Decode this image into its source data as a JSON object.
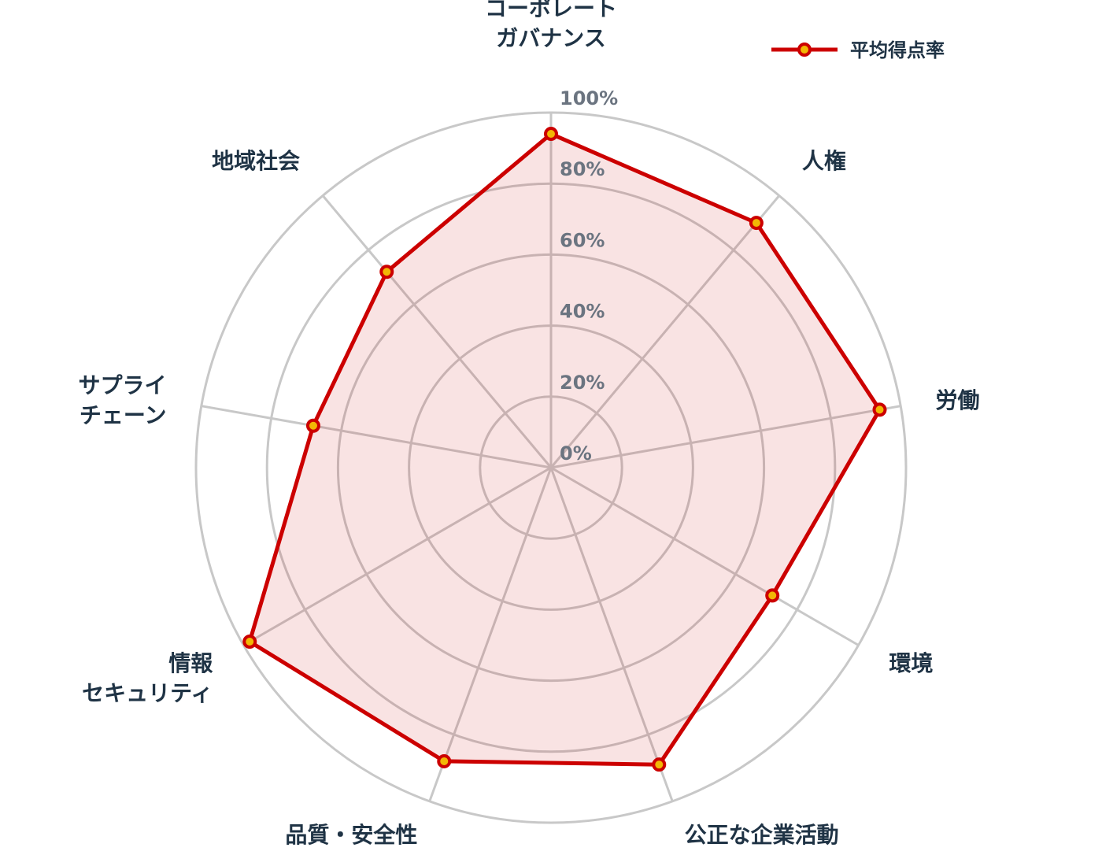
{
  "chart_data": {
    "type": "radar",
    "categories": [
      [
        "コーポレート",
        "ガバナンス"
      ],
      [
        "人権"
      ],
      [
        "労働"
      ],
      [
        "環境"
      ],
      [
        "公正な企業活動"
      ],
      [
        "品質・安全性"
      ],
      [
        "情報",
        "セキュリティ"
      ],
      [
        "サプライ",
        "チェーン"
      ],
      [
        "地域社会"
      ]
    ],
    "series": [
      {
        "name": "平均得点率",
        "values": [
          94,
          90,
          94,
          72,
          89,
          88,
          98,
          68,
          72
        ]
      }
    ],
    "rlim": [
      0,
      100
    ],
    "ticks": [
      "0%",
      "20%",
      "40%",
      "60%",
      "80%",
      "100%"
    ],
    "tick_values": [
      0,
      20,
      40,
      60,
      80,
      100
    ],
    "grid": true,
    "legend": "top-right",
    "colors": {
      "line": "#cc0000",
      "fill": "rgba(204,0,0,0.11)",
      "marker_fill": "#f2b705",
      "grid": "#c8c8c8",
      "label": "#1f3345",
      "tick": "#6b7480"
    }
  }
}
